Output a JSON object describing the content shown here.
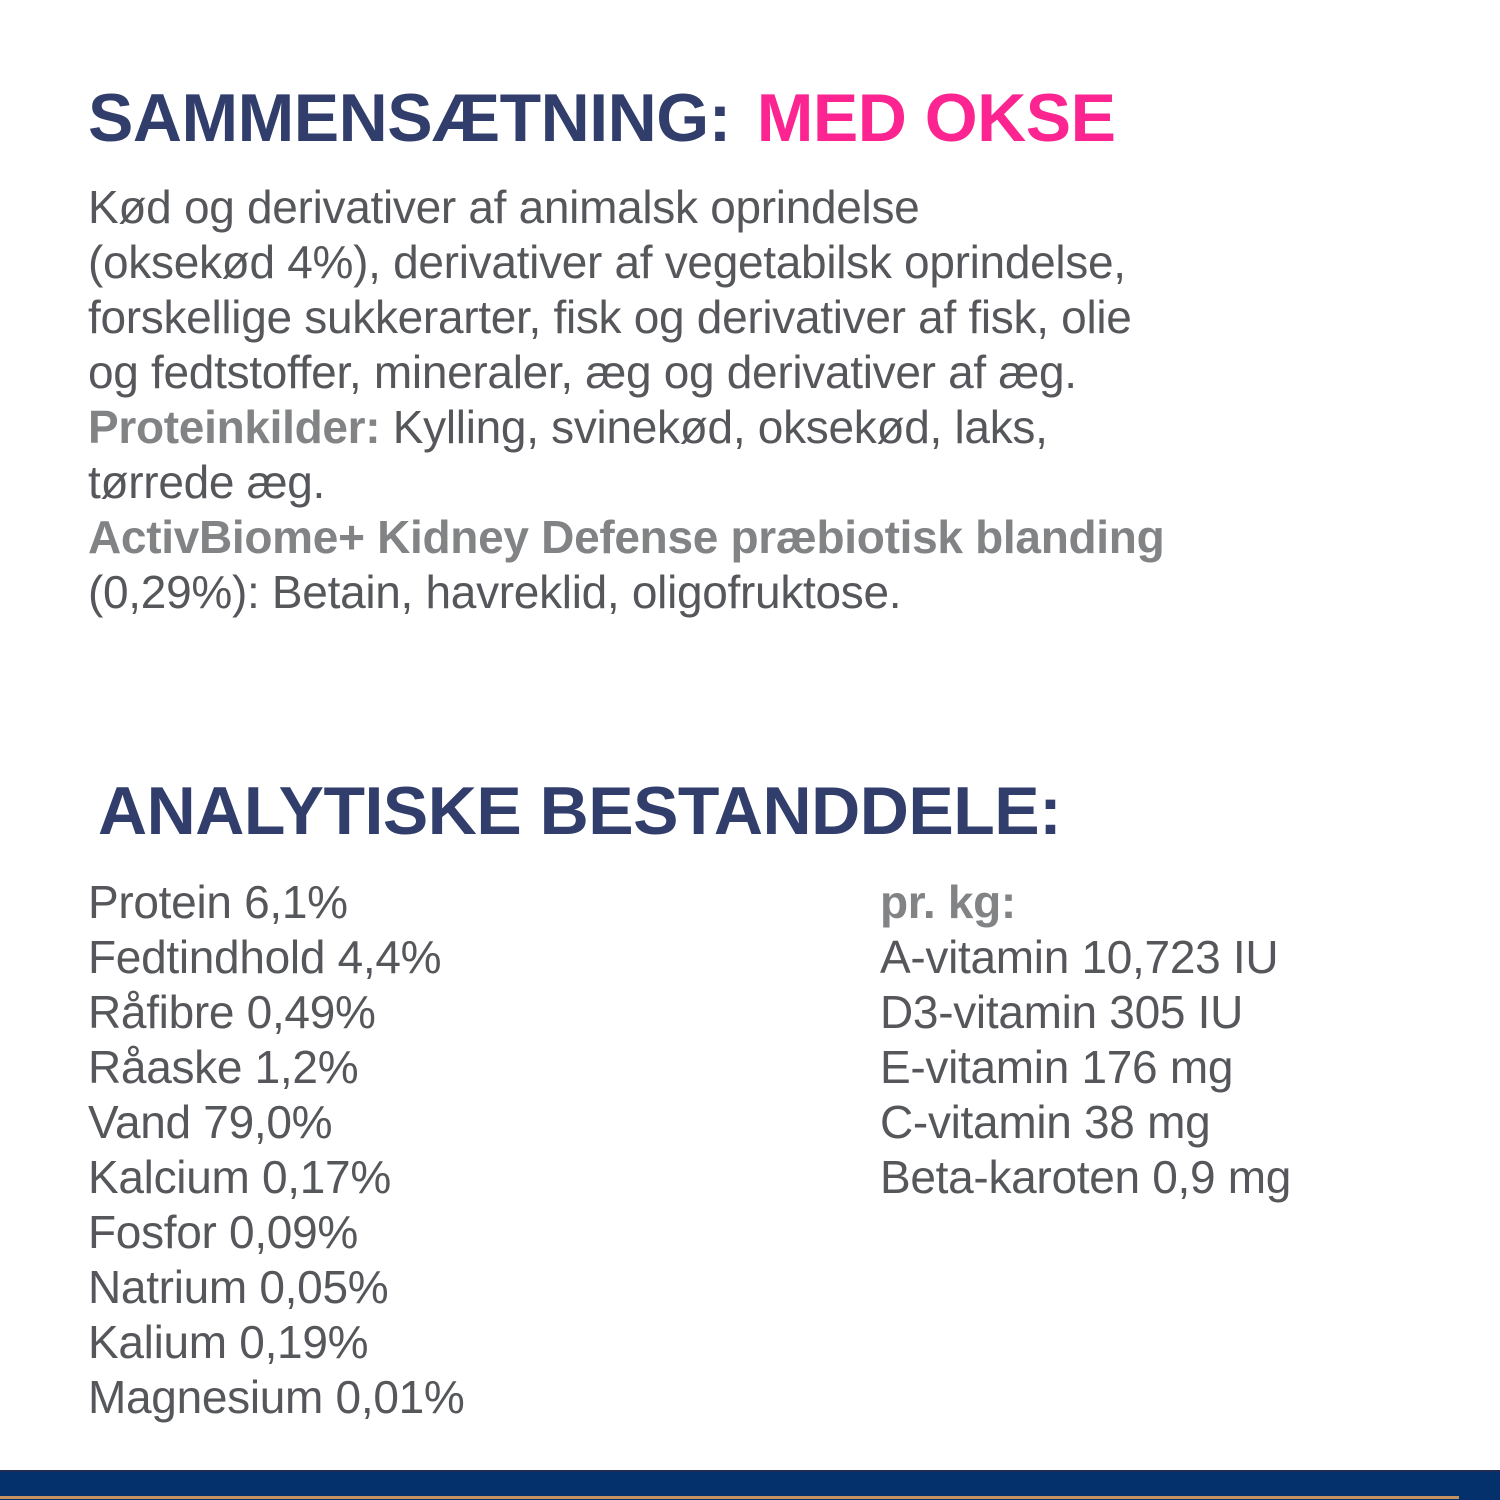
{
  "colors": {
    "heading_navy": "#313d6b",
    "accent_pink": "#fb2490",
    "body_gray": "#55575b",
    "bold_gray": "#818385",
    "bar_navy": "#04306b",
    "bar_tan": "#c7925f"
  },
  "composition": {
    "title": "SAMMENSÆTNING:",
    "title_highlight": "MED OKSE",
    "lines": [
      {
        "runs": [
          {
            "text": "Kød og derivativer af animalsk oprindelse",
            "bold": false
          }
        ]
      },
      {
        "runs": [
          {
            "text": "(oksekød 4%), derivativer af vegetabilsk oprindelse,",
            "bold": false
          }
        ]
      },
      {
        "runs": [
          {
            "text": "forskellige sukkerarter, fisk og derivativer af fisk, olie",
            "bold": false
          }
        ]
      },
      {
        "runs": [
          {
            "text": "og fedtstoffer, mineraler, æg og derivativer af æg.",
            "bold": false
          }
        ]
      },
      {
        "runs": [
          {
            "text": "Proteinkilder:",
            "bold": true
          },
          {
            "text": " Kylling, svinekød, oksekød, laks,",
            "bold": false
          }
        ]
      },
      {
        "runs": [
          {
            "text": "tørrede æg.",
            "bold": false
          }
        ]
      },
      {
        "runs": [
          {
            "text": "ActivBiome+ Kidney Defense præbiotisk blanding",
            "bold": true
          }
        ]
      },
      {
        "runs": [
          {
            "text": "(0,29%): Betain, havreklid, oligofruktose.",
            "bold": false
          }
        ]
      }
    ]
  },
  "analysis": {
    "title": "ANALYTISKE BESTANDDELE:",
    "left_items": [
      {
        "label": "Protein",
        "value": "6,1%"
      },
      {
        "label": "Fedtindhold",
        "value": "4,4%"
      },
      {
        "label": "Råfibre",
        "value": "0,49%"
      },
      {
        "label": "Råaske",
        "value": "1,2%"
      },
      {
        "label": "Vand",
        "value": "79,0%"
      },
      {
        "label": "Kalcium",
        "value": "0,17%"
      },
      {
        "label": "Fosfor",
        "value": "0,09%"
      },
      {
        "label": "Natrium",
        "value": "0,05%"
      },
      {
        "label": "Kalium",
        "value": "0,19%"
      },
      {
        "label": "Magnesium",
        "value": "0,01%"
      }
    ],
    "per_kg_header": "pr. kg:",
    "right_items": [
      {
        "label": "A-vitamin",
        "value": "10,723 IU"
      },
      {
        "label": "D3-vitamin",
        "value": "305 IU"
      },
      {
        "label": "E-vitamin",
        "value": "176 mg"
      },
      {
        "label": "C-vitamin",
        "value": "38 mg"
      },
      {
        "label": "Beta-karoten",
        "value": "0,9 mg"
      }
    ]
  }
}
